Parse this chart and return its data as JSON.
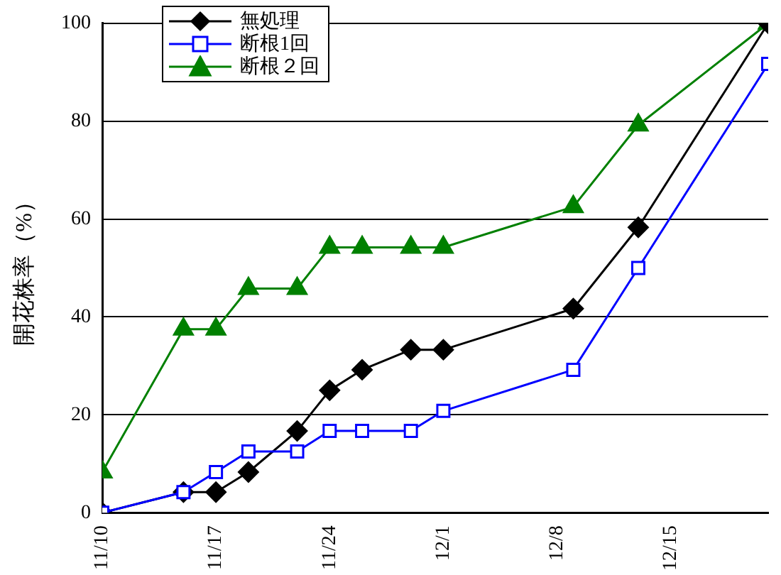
{
  "chart_data": {
    "type": "line",
    "ylabel": "開花株率（%）",
    "x": [
      "--11-10",
      "--11-15",
      "--11-17",
      "--11-19",
      "--11-22",
      "--11-24",
      "--11-26",
      "--11-29",
      "--12-01",
      "--12-09",
      "--12-13",
      "--12-21"
    ],
    "series": [
      {
        "name": "無処理",
        "color": "#000000",
        "marker": "diamond",
        "values": [
          0,
          4.2,
          4.2,
          8.3,
          16.7,
          25,
          29.2,
          33.3,
          33.3,
          41.7,
          58.3,
          100
        ]
      },
      {
        "name": "断根1回",
        "color": "#0000ff",
        "marker": "square",
        "values": [
          0,
          4.2,
          8.3,
          12.5,
          12.5,
          16.7,
          16.7,
          16.7,
          20.8,
          29.2,
          50,
          91.7
        ]
      },
      {
        "name": "断根２回",
        "color": "#008000",
        "marker": "triangle",
        "values": [
          8.3,
          37.5,
          37.5,
          45.8,
          45.8,
          54.2,
          54.2,
          54.2,
          54.2,
          62.5,
          79.2,
          100
        ]
      }
    ],
    "xlim": [
      "--11-10",
      "--12-21"
    ],
    "xticks": [
      {
        "value": "--11-10",
        "label": "11/10"
      },
      {
        "value": "--11-17",
        "label": "11/17"
      },
      {
        "value": "--11-24",
        "label": "11/24"
      },
      {
        "value": "--12-01",
        "label": "12/1"
      },
      {
        "value": "--12-08",
        "label": "12/8"
      },
      {
        "value": "--12-15",
        "label": "12/15"
      }
    ],
    "ylim": [
      0,
      100
    ],
    "yticks": [
      0,
      20,
      40,
      60,
      80,
      100
    ],
    "grid": "y",
    "legend": "top left",
    "line_style": "solid"
  }
}
